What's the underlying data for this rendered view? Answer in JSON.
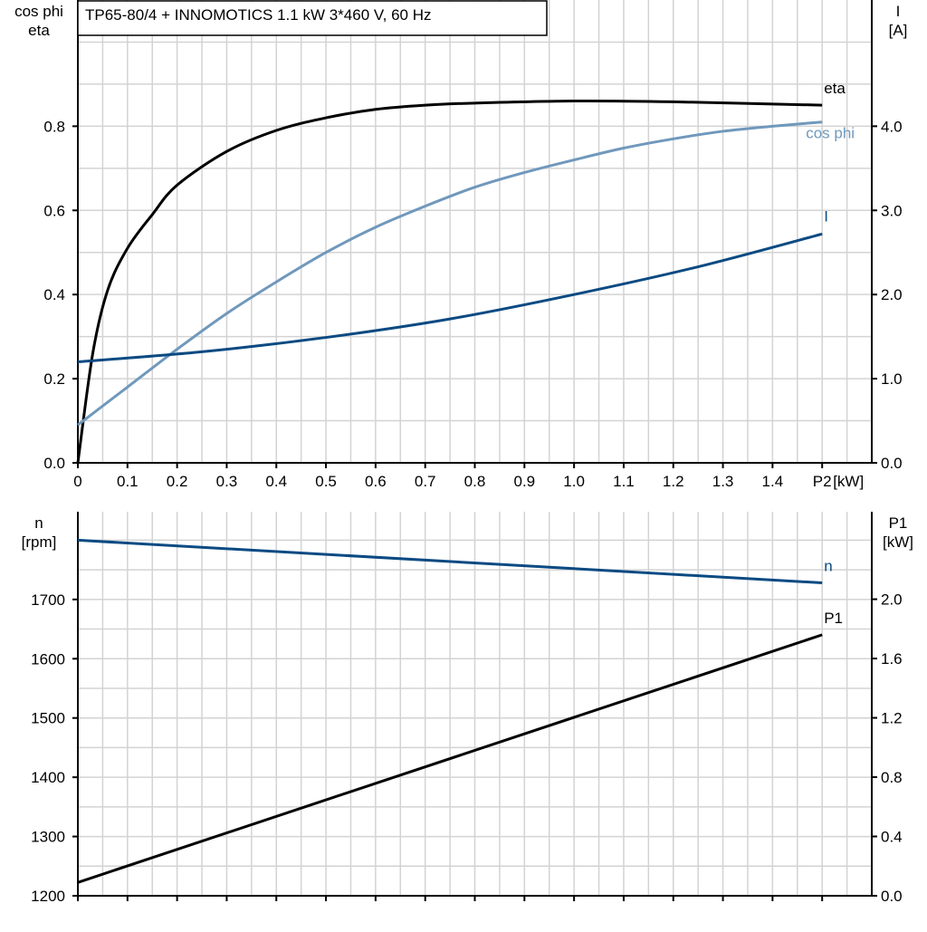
{
  "chart_data": [
    {
      "type": "line",
      "title": "TP65-80/4 + INNOMOTICS   1.1 kW   3*460 V, 60 Hz",
      "xlabel": "P2 [kW]",
      "x_unit": "[kW]",
      "x_last_tick_label": "P2",
      "xlim": [
        0,
        1.6
      ],
      "xticks": [
        "0",
        "0.1",
        "0.2",
        "0.3",
        "0.4",
        "0.5",
        "0.6",
        "0.7",
        "0.8",
        "0.9",
        "1.0",
        "1.1",
        "1.2",
        "1.3",
        "1.4"
      ],
      "ylabel_left": [
        "cos phi",
        "eta"
      ],
      "ylim_left": [
        0,
        1.1
      ],
      "yticks_left": [
        "0.0",
        "0.2",
        "0.4",
        "0.6",
        "0.8"
      ],
      "ylabel_right": [
        "I",
        "[A]"
      ],
      "ylim_right": [
        0,
        5.5
      ],
      "yticks_right": [
        "0.0",
        "1.0",
        "2.0",
        "3.0",
        "4.0"
      ],
      "grid": true,
      "series": [
        {
          "name": "eta",
          "axis": "left",
          "color": "#000000",
          "x": [
            0,
            0.03,
            0.06,
            0.1,
            0.15,
            0.2,
            0.3,
            0.4,
            0.5,
            0.6,
            0.7,
            0.8,
            1.0,
            1.2,
            1.5
          ],
          "y": [
            0,
            0.26,
            0.41,
            0.51,
            0.59,
            0.66,
            0.74,
            0.79,
            0.82,
            0.84,
            0.85,
            0.855,
            0.86,
            0.858,
            0.85
          ]
        },
        {
          "name": "cos phi",
          "axis": "left",
          "color": "#7098bc",
          "x": [
            0,
            0.1,
            0.2,
            0.3,
            0.4,
            0.5,
            0.6,
            0.7,
            0.8,
            0.9,
            1.0,
            1.1,
            1.2,
            1.3,
            1.4,
            1.5
          ],
          "y": [
            0.09,
            0.18,
            0.27,
            0.355,
            0.43,
            0.5,
            0.56,
            0.61,
            0.655,
            0.69,
            0.72,
            0.748,
            0.77,
            0.788,
            0.8,
            0.81
          ]
        },
        {
          "name": "I",
          "axis": "right",
          "color": "#0a4a82",
          "x": [
            0,
            0.25,
            0.5,
            0.75,
            1.0,
            1.25,
            1.5
          ],
          "y": [
            1.2,
            1.32,
            1.49,
            1.71,
            2.0,
            2.33,
            2.72
          ]
        }
      ]
    },
    {
      "type": "line",
      "xlim": [
        0,
        1.6
      ],
      "ylabel_left": [
        "n",
        "[rpm]"
      ],
      "ylim_left": [
        1200,
        1848
      ],
      "yticks_left": [
        "1200",
        "1300",
        "1400",
        "1500",
        "1600",
        "1700"
      ],
      "ylabel_right": [
        "P1",
        "[kW]"
      ],
      "ylim_right": [
        0,
        2.59
      ],
      "yticks_right": [
        "0.0",
        "0.4",
        "0.8",
        "1.2",
        "1.6",
        "2.0"
      ],
      "grid": true,
      "series": [
        {
          "name": "n",
          "axis": "left",
          "color": "#0a4a82",
          "x": [
            0,
            1.5
          ],
          "y": [
            1800,
            1728
          ]
        },
        {
          "name": "P1",
          "axis": "right",
          "color": "#000000",
          "x": [
            0,
            1.5
          ],
          "y": [
            0.09,
            1.76
          ]
        }
      ]
    }
  ]
}
